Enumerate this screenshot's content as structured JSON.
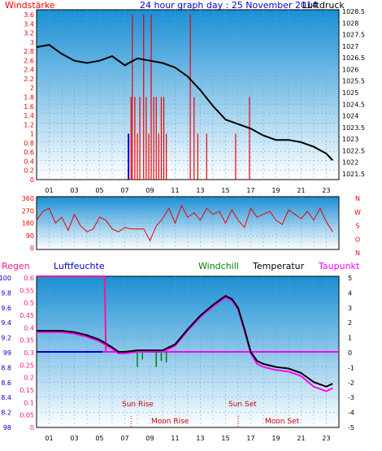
{
  "header": {
    "left_label": "Windstärke",
    "title": "24 hour graph day : 25 November 2014",
    "right_label": "Luftdruck"
  },
  "bottom_header": {
    "regen": "Regen",
    "luftfeuchte": "Luftfeuchte",
    "windchill": "Windchill",
    "temperatur": "Temperatur",
    "taupunkt": "Taupunkt"
  },
  "colors": {
    "wind": "#ee0000",
    "pressure": "#000000",
    "temperature": "#000000",
    "dewpoint": "#ff00ff",
    "windchill": "#008000",
    "humidity": "#0000cc",
    "rain": "#ff1493",
    "direction": "#ee0000",
    "background_top": "#1a8fd4",
    "background_bottom": "#ffffff"
  },
  "chart_data": [
    {
      "type": "line",
      "panel": "wind-pressure",
      "left_axis_ticks": [
        "3.6",
        "3.4",
        "3.2",
        "3",
        "2.8",
        "2.6",
        "2.4",
        "2.2",
        "2",
        "1.8",
        "1.6",
        "1.4",
        "1.2",
        "1",
        "0.8",
        "0.6",
        "0.4",
        "0.2",
        "0"
      ],
      "right_axis_ticks": [
        "1028.5",
        "1028",
        "1027.5",
        "1027",
        "1026.5",
        "1026",
        "1025.5",
        "1025",
        "1024.5",
        "1024",
        "1023.5",
        "1023",
        "1022.5",
        "1022",
        "1021.5"
      ],
      "x_ticks": [
        "01",
        "03",
        "05",
        "07",
        "09",
        "11",
        "13",
        "15",
        "17",
        "19",
        "21",
        "23"
      ],
      "ylim_left": [
        0,
        3.7
      ],
      "ylim_right": [
        1021.25,
        1028.75
      ],
      "pressure": {
        "x": [
          0,
          1,
          2,
          3,
          4,
          5,
          6,
          7,
          8,
          9,
          10,
          11,
          12,
          13,
          14,
          15,
          16,
          17,
          18,
          19,
          20,
          21,
          22,
          23,
          23.5
        ],
        "y": [
          1027.1,
          1027.2,
          1026.8,
          1026.5,
          1026.4,
          1026.5,
          1026.7,
          1026.3,
          1026.6,
          1026.5,
          1026.4,
          1026.2,
          1025.8,
          1025.2,
          1024.5,
          1023.9,
          1023.7,
          1023.5,
          1023.2,
          1023.0,
          1023.0,
          1022.9,
          1022.7,
          1022.4,
          1022.1
        ]
      },
      "wind_bars": [
        {
          "x": 7.5,
          "v": 1.8
        },
        {
          "x": 7.6,
          "v": 3.6
        },
        {
          "x": 7.8,
          "v": 1.8
        },
        {
          "x": 8.0,
          "v": 1.0
        },
        {
          "x": 8.2,
          "v": 1.8
        },
        {
          "x": 8.5,
          "v": 3.6
        },
        {
          "x": 8.7,
          "v": 1.8
        },
        {
          "x": 8.9,
          "v": 1.0
        },
        {
          "x": 9.1,
          "v": 3.6
        },
        {
          "x": 9.3,
          "v": 1.8
        },
        {
          "x": 9.5,
          "v": 1.8
        },
        {
          "x": 9.7,
          "v": 1.0
        },
        {
          "x": 9.9,
          "v": 1.8
        },
        {
          "x": 10.1,
          "v": 1.8
        },
        {
          "x": 10.3,
          "v": 1.0
        },
        {
          "x": 12.2,
          "v": 3.6
        },
        {
          "x": 12.5,
          "v": 1.8
        },
        {
          "x": 12.8,
          "v": 1.0
        },
        {
          "x": 13.5,
          "v": 1.0
        },
        {
          "x": 15.8,
          "v": 1.0
        },
        {
          "x": 16.9,
          "v": 1.8
        }
      ],
      "wind_marker_x": 7.3
    },
    {
      "type": "line",
      "panel": "wind-direction",
      "left_axis_ticks": [
        "360",
        "270",
        "180",
        "90",
        "0"
      ],
      "right_axis_labels": [
        "N",
        "W",
        "S",
        "O",
        "N"
      ],
      "ylim": [
        0,
        360
      ],
      "direction": {
        "x": [
          0,
          0.5,
          1,
          1.5,
          2,
          2.5,
          3,
          3.5,
          4,
          4.5,
          5,
          5.5,
          6,
          6.5,
          7,
          7.5,
          8,
          8.5,
          9,
          9.5,
          10,
          10.5,
          11,
          11.5,
          12,
          12.5,
          13,
          13.5,
          14,
          14.5,
          15,
          15.5,
          16,
          16.5,
          17,
          17.5,
          18,
          18.5,
          19,
          19.5,
          20,
          20.5,
          21,
          21.5,
          22,
          22.5,
          23,
          23.5
        ],
        "y": [
          200,
          260,
          280,
          180,
          220,
          130,
          240,
          160,
          120,
          140,
          220,
          200,
          140,
          120,
          150,
          140,
          140,
          140,
          60,
          160,
          210,
          280,
          180,
          300,
          220,
          250,
          200,
          280,
          240,
          260,
          180,
          270,
          200,
          150,
          280,
          220,
          240,
          260,
          200,
          170,
          270,
          240,
          210,
          260,
          200,
          280,
          190,
          120
        ]
      }
    },
    {
      "type": "line",
      "panel": "temperature-humidity",
      "left_axis_ticks": [
        "0.6",
        "0.55",
        "0.5",
        "0.45",
        "0.4",
        "0.35",
        "0.3",
        "0.25",
        "0.2",
        "0.15",
        "0.1",
        "0.05",
        "0"
      ],
      "humidity_axis_ticks": [
        "100",
        "99",
        "98"
      ],
      "humidity_axis_ticks_full": [
        "100",
        "9.8",
        "9.6",
        "9.4",
        "9.2",
        "99",
        "8.8",
        "8.6",
        "8.4",
        "8.2",
        "98"
      ],
      "right_axis_ticks": [
        "5",
        "4",
        "3",
        "2",
        "1",
        "0",
        "-1",
        "-2",
        "-3",
        "-4",
        "-5"
      ],
      "x_ticks": [
        "01",
        "03",
        "05",
        "07",
        "09",
        "11",
        "13",
        "15",
        "17",
        "19",
        "21",
        "23"
      ],
      "ylim_right": [
        -5,
        5
      ],
      "temperature": {
        "x": [
          0,
          1,
          2,
          3,
          4,
          5,
          6,
          6.5,
          7,
          8,
          9,
          10,
          11,
          12,
          13,
          14,
          15,
          15.5,
          16,
          16.5,
          17,
          17.5,
          18,
          19,
          20,
          21,
          22,
          23,
          23.5
        ],
        "y": [
          1.4,
          1.4,
          1.4,
          1.3,
          1.1,
          0.8,
          0.3,
          0.0,
          0.0,
          0.1,
          0.1,
          0.1,
          0.5,
          1.5,
          2.4,
          3.1,
          3.7,
          3.5,
          2.9,
          1.5,
          0.0,
          -0.6,
          -0.8,
          -1.0,
          -1.1,
          -1.4,
          -2.0,
          -2.3,
          -2.1
        ]
      },
      "dewpoint": {
        "x": [
          0,
          1,
          2,
          3,
          4,
          5,
          6,
          6.5,
          7,
          8,
          9,
          10,
          11,
          12,
          13,
          14,
          15,
          15.5,
          16,
          16.5,
          17,
          17.5,
          18,
          19,
          20,
          21,
          22,
          23,
          23.5
        ],
        "y": [
          1.3,
          1.3,
          1.3,
          1.2,
          1.0,
          0.7,
          0.2,
          -0.1,
          -0.1,
          0.0,
          0.0,
          0.0,
          0.4,
          1.4,
          2.3,
          3.0,
          3.6,
          3.4,
          2.8,
          1.4,
          -0.1,
          -0.8,
          -1.0,
          -1.2,
          -1.3,
          -1.6,
          -2.3,
          -2.6,
          -2.4
        ]
      },
      "windchill_ticks": [
        {
          "x": 8.0,
          "y": -1.0
        },
        {
          "x": 8.4,
          "y": -0.5
        },
        {
          "x": 9.5,
          "y": -1.0
        },
        {
          "x": 9.9,
          "y": -0.6
        },
        {
          "x": 10.3,
          "y": -0.7
        }
      ],
      "humidity_line": 99,
      "rain": {
        "x": [
          0,
          5.4,
          5.5,
          24
        ],
        "v": [
          0.6,
          0.6,
          0.3,
          0.3
        ]
      },
      "annotations": {
        "sun_rise": "Sun Rise",
        "sun_set": "Sun Set",
        "moon_rise": "Moon Rise",
        "moon_set": "Moon Set",
        "moon_rise_x": 7.5,
        "moon_set_x": 16.0
      }
    }
  ]
}
